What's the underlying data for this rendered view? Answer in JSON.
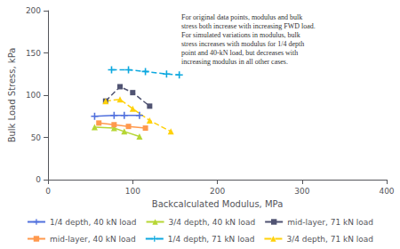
{
  "chart_data": {
    "type": "line",
    "xlabel": "Backcalculated Modulus, MPa",
    "ylabel": "Bulk Load Stress, kPa",
    "xlim": [
      0,
      400
    ],
    "ylim": [
      0,
      200
    ],
    "xticks": [
      0,
      100,
      200,
      300,
      400
    ],
    "yticks": [
      0,
      50,
      100,
      150,
      200
    ],
    "grid": false,
    "legend": "bottom",
    "annotation": "For original data points, modulus and bulk\nstress both increase with increasing FWD load.\nFor simulated variations in modulus, bulk\nstress increases with modulus for 1/4 depth\npoint and 40-kN load, but decreases with\nincreasing modulus in all other cases.",
    "series": [
      {
        "name": "1/4 depth, 40 kN load",
        "marker": "plus",
        "line_style": "solid",
        "x": [
          55,
          78,
          90,
          108
        ],
        "values": [
          75,
          76,
          76,
          76
        ]
      },
      {
        "name": "3/4 depth, 40 kN load",
        "marker": "triangle",
        "line_style": "solid",
        "x": [
          55,
          78,
          90,
          108
        ],
        "values": [
          62,
          61,
          57,
          51
        ]
      },
      {
        "name": "mid-layer, 71 kN load",
        "marker": "square",
        "line_style": "dashed",
        "x": [
          68,
          85,
          100,
          120
        ],
        "values": [
          93,
          110,
          103,
          87
        ]
      },
      {
        "name": "mid-layer, 40 kN load",
        "marker": "square",
        "line_style": "solid",
        "x": [
          60,
          78,
          95,
          115
        ],
        "values": [
          67,
          65,
          63,
          61
        ]
      },
      {
        "name": "1/4 depth, 71 kN load",
        "marker": "plus",
        "line_style": "dashed",
        "x": [
          75,
          95,
          115,
          140,
          155
        ],
        "values": [
          130,
          130,
          128,
          125,
          124
        ]
      },
      {
        "name": "3/4 depth, 71 kN load",
        "marker": "triangle",
        "line_style": "dashed",
        "x": [
          68,
          85,
          100,
          120,
          145
        ],
        "values": [
          93,
          95,
          84,
          70,
          57
        ]
      }
    ]
  }
}
